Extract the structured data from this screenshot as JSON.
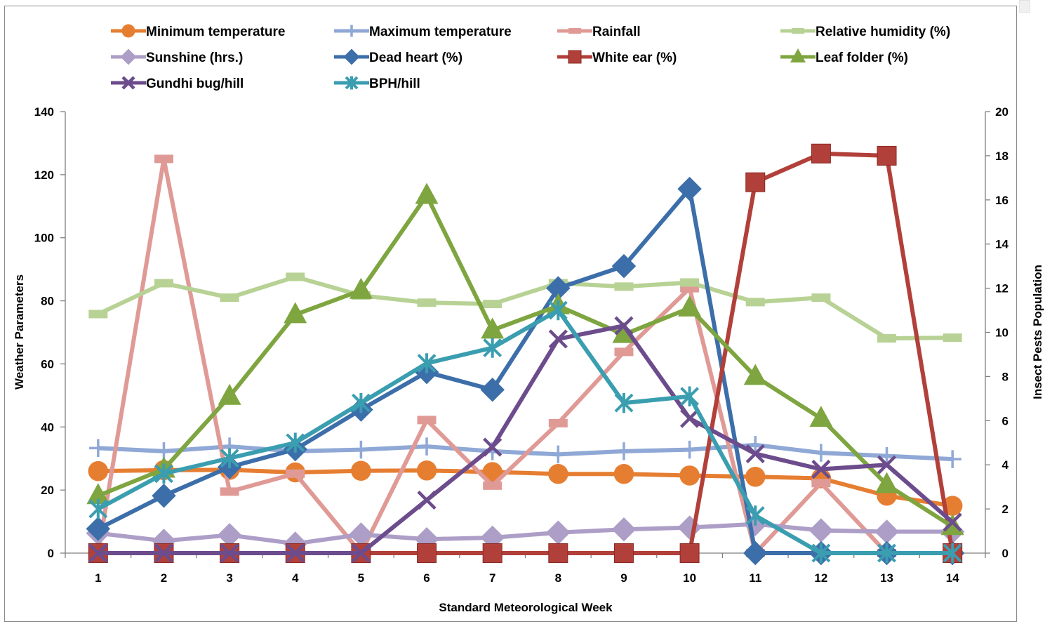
{
  "chart_data": {
    "type": "line",
    "categories": [
      "1",
      "2",
      "3",
      "4",
      "5",
      "6",
      "7",
      "8",
      "9",
      "10",
      "11",
      "12",
      "13",
      "14"
    ],
    "xlabel": "Standard Meteorological Week",
    "ylabel": "Weather Parameters",
    "y2label": "Insect Pests Population",
    "ylim": [
      0,
      140
    ],
    "yticks": [
      "0",
      "20",
      "40",
      "60",
      "80",
      "100",
      "120",
      "140"
    ],
    "y2lim": [
      0,
      20
    ],
    "y2ticks": [
      "0",
      "2",
      "4",
      "6",
      "8",
      "10",
      "12",
      "14",
      "16",
      "18",
      "20"
    ],
    "legend_position": "top",
    "grid": false,
    "series": [
      {
        "name": "Minimum temperature",
        "axis": "left",
        "color": "#e67e32",
        "marker": "circle",
        "values": [
          26.0,
          26.3,
          26.4,
          25.6,
          26.1,
          26.2,
          25.7,
          25.1,
          25.1,
          24.6,
          24.2,
          23.7,
          18.2,
          15.0
        ]
      },
      {
        "name": "Maximum temperature",
        "axis": "left",
        "color": "#8fa8d6",
        "marker": "plus",
        "values": [
          33.3,
          32.3,
          33.8,
          32.3,
          32.8,
          33.8,
          32.3,
          31.3,
          32.3,
          32.8,
          34.3,
          31.8,
          30.8,
          29.8
        ]
      },
      {
        "name": "Rainfall",
        "axis": "left",
        "color": "#e09a96",
        "marker": "dash",
        "values": [
          0,
          125.0,
          19.5,
          25.2,
          0,
          42.2,
          21.4,
          41.2,
          63.8,
          84.0,
          0,
          22.2,
          0,
          0
        ]
      },
      {
        "name": "Relative humidity (%)",
        "axis": "left",
        "color": "#b7d294",
        "marker": "dash",
        "values": [
          75.8,
          85.6,
          81.0,
          87.6,
          81.7,
          79.4,
          79.0,
          85.6,
          84.5,
          85.8,
          79.6,
          81.0,
          68.1,
          68.3
        ]
      },
      {
        "name": "Sunshine (hrs.)",
        "axis": "left",
        "color": "#ad9ec7",
        "marker": "diamond",
        "values": [
          6.3,
          3.9,
          5.7,
          3.0,
          5.9,
          4.4,
          4.9,
          6.5,
          7.5,
          8.1,
          9.2,
          7.2,
          6.8,
          6.8
        ]
      },
      {
        "name": "Dead heart (%)",
        "axis": "right",
        "color": "#3c6eaa",
        "marker": "diamond",
        "values": [
          1.1,
          2.6,
          3.9,
          4.7,
          6.5,
          8.2,
          7.4,
          12.0,
          13.0,
          16.5,
          0,
          0,
          0,
          0
        ]
      },
      {
        "name": "White ear (%)",
        "axis": "right",
        "color": "#b2403a",
        "marker": "square",
        "values": [
          0,
          0,
          0,
          0,
          0,
          0,
          0,
          0,
          0,
          0,
          16.8,
          18.1,
          18.0,
          0
        ]
      },
      {
        "name": "Leaf folder (%)",
        "axis": "right",
        "color": "#7ea53f",
        "marker": "triangle",
        "values": [
          2.6,
          3.8,
          7.1,
          10.8,
          11.9,
          16.2,
          10.1,
          11.2,
          9.9,
          11.1,
          8.0,
          6.1,
          3.1,
          1.2
        ]
      },
      {
        "name": "Gundhi bug/hill",
        "axis": "right",
        "color": "#6c4c8c",
        "marker": "x",
        "values": [
          0,
          0,
          0,
          0,
          0,
          2.4,
          4.8,
          9.7,
          10.3,
          6.1,
          4.5,
          3.8,
          4.0,
          1.4
        ]
      },
      {
        "name": "BPH/hill",
        "axis": "right",
        "color": "#3a9eb0",
        "marker": "asterisk",
        "values": [
          2.0,
          3.6,
          4.3,
          5.0,
          6.8,
          8.6,
          9.3,
          11.0,
          6.8,
          7.1,
          1.7,
          0,
          0,
          0
        ]
      }
    ]
  }
}
